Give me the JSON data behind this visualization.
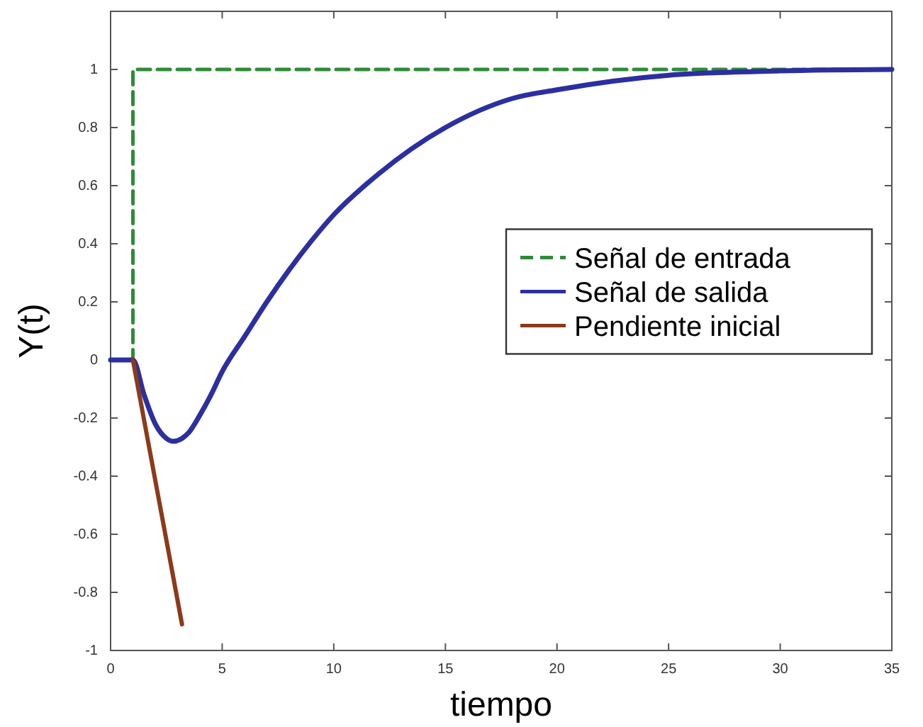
{
  "chart_data": {
    "type": "line",
    "xlabel": "tiempo",
    "ylabel": "Y(t)",
    "xlim": [
      0,
      35
    ],
    "ylim": [
      -1,
      1.2
    ],
    "xticks": [
      0,
      5,
      10,
      15,
      20,
      25,
      30,
      35
    ],
    "yticks": [
      -1,
      -0.8,
      -0.6,
      -0.4,
      -0.2,
      0,
      0.2,
      0.4,
      0.6,
      0.8,
      1
    ],
    "grid": false,
    "legend": "right",
    "marker": "none",
    "series": [
      {
        "name": "Señal de entrada",
        "type": "step",
        "color": "#2e8b3a",
        "line_style": "dashed",
        "x": [
          0,
          1,
          35
        ],
        "values": [
          0,
          1,
          1
        ]
      },
      {
        "name": "Señal de salida",
        "color": "#2b2fa0",
        "line_style": "solid",
        "x": [
          0,
          1,
          1.5,
          2,
          2.5,
          2.8,
          3.2,
          3.5,
          4,
          4.5,
          5,
          6,
          7,
          8,
          9,
          10,
          12,
          15,
          18,
          20,
          25,
          30,
          35
        ],
        "values": [
          0,
          0,
          -0.12,
          -0.22,
          -0.27,
          -0.28,
          -0.27,
          -0.25,
          -0.19,
          -0.12,
          -0.04,
          0.08,
          0.2,
          0.31,
          0.41,
          0.5,
          0.64,
          0.8,
          0.9,
          0.93,
          0.98,
          0.995,
          1
        ]
      },
      {
        "name": "Pendiente inicial",
        "color": "#8b3a1a",
        "line_style": "solid",
        "x": [
          1,
          3.2
        ],
        "values": [
          0,
          -0.91
        ]
      }
    ]
  }
}
